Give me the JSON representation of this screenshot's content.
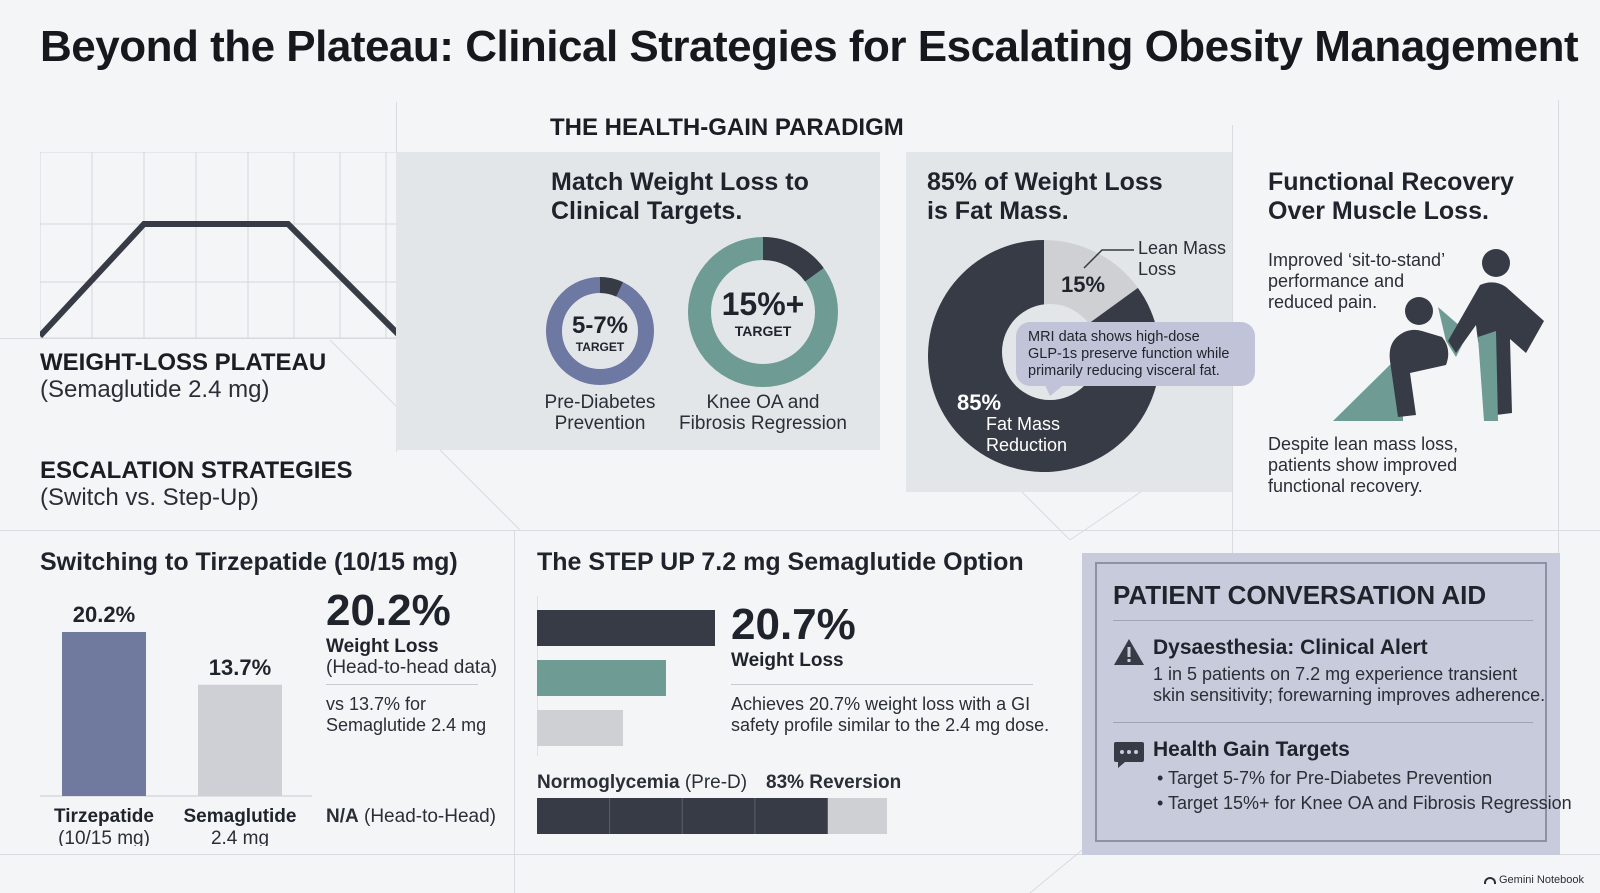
{
  "title": "Beyond the Plateau: Clinical Strategies for Escalating Obesity Management",
  "plateau": {
    "heading": "WEIGHT-LOSS PLATEAU",
    "subheading": "(Semaglutide 2.4 mg)"
  },
  "escalation": {
    "heading": "ESCALATION STRATEGIES",
    "subheading": "(Switch vs. Step-Up)"
  },
  "paradigm": {
    "heading": "THE HEALTH-GAIN PARADIGM",
    "match": {
      "title_line1": "Match Weight Loss to",
      "title_line2": "Clinical Targets.",
      "ring1": {
        "value": "5-7%",
        "tag": "TARGET",
        "caption_line1": "Pre-Diabetes",
        "caption_line2": "Prevention",
        "fraction": 0.07,
        "color": "#6d78a3"
      },
      "ring2": {
        "value": "15%+",
        "tag": "TARGET",
        "caption_line1": "Knee OA and",
        "caption_line2": "Fibrosis Regression",
        "fraction": 0.15,
        "color": "#6e9b93"
      }
    },
    "fat": {
      "title_line1": "85% of Weight Loss",
      "title_line2": "is Fat Mass.",
      "lean_label_line1": "Lean Mass",
      "lean_label_line2": "Loss",
      "lean_value": "15%",
      "fat_value": "85%",
      "fat_label_line1": "Fat Mass",
      "fat_label_line2": "Reduction",
      "callout_line1": "MRI data shows high-dose",
      "callout_line2": "GLP-1s preserve function while",
      "callout_line3": "primarily reducing visceral fat."
    },
    "functional": {
      "title_line1": "Functional Recovery",
      "title_line2": "Over Muscle Loss.",
      "desc_line1": "Improved ‘sit-to-stand’",
      "desc_line2": "performance and",
      "desc_line3": "reduced pain.",
      "foot_line1": "Despite lean mass loss,",
      "foot_line2": "patients show improved",
      "foot_line3": "functional recovery."
    }
  },
  "switching": {
    "heading": "Switching to Tirzepatide (10/15 mg)",
    "big_value": "20.2%",
    "big_label": "Weight Loss",
    "big_sub": "(Head-to-head data)",
    "compare_line1": "vs 13.7% for",
    "compare_line2": "Semaglutide 2.4 mg",
    "na_bold": "N/A",
    "na_rest": " (Head-to-Head)"
  },
  "stepup": {
    "heading": "The STEP UP 7.2 mg Semaglutide Option",
    "big_value": "20.7%",
    "big_label": "Weight Loss",
    "desc_line1": "Achieves 20.7% weight loss with a GI",
    "desc_line2": "safety profile similar to the 2.4 mg dose.",
    "normo_bold": "Normoglycemia",
    "normo_rest": " (Pre-D)",
    "reversion": "83% Reversion"
  },
  "aid": {
    "heading": "PATIENT CONVERSATION AID",
    "alert_title": "Dysaesthesia: Clinical Alert",
    "alert_line1": "1 in 5 patients on 7.2 mg experience transient",
    "alert_line2": "skin sensitivity; forewarning improves adherence.",
    "targets_title": "Health Gain Targets",
    "target1": "• Target 5-7% for Pre-Diabetes Prevention",
    "target2": "• Target 15%+ for Knee OA and Fibrosis Regression"
  },
  "watermark": "Gemini Notebook",
  "chart_data": [
    {
      "type": "bar",
      "categories": [
        "Tirzepatide (10/15 mg)",
        "Semaglutide 2.4 mg"
      ],
      "values": [
        20.2,
        13.7
      ],
      "data_labels": [
        "20.2%",
        "13.7%"
      ],
      "tick_line1": [
        "Tirzepatide",
        "Semaglutide"
      ],
      "tick_line2": [
        "(10/15 mg)",
        "2.4 mg"
      ],
      "colors": [
        "#6f7a9e",
        "#cfd0d6"
      ]
    },
    {
      "type": "pie",
      "categories": [
        "Lean Mass Loss",
        "Fat Mass Reduction"
      ],
      "values": [
        15,
        85
      ],
      "colors": [
        "#cfd0d4",
        "#363b45"
      ]
    },
    {
      "type": "bar",
      "orientation": "horizontal",
      "values": [
        20.7,
        15,
        10
      ],
      "colors": [
        "#363b45",
        "#6e9b93",
        "#cfd0d4"
      ]
    },
    {
      "type": "bar",
      "orientation": "horizontal",
      "stacked": true,
      "series": [
        {
          "values": [
            83
          ]
        },
        {
          "values": [
            17
          ]
        }
      ],
      "colors": [
        "#363b45",
        "#cfd0d4"
      ]
    }
  ]
}
